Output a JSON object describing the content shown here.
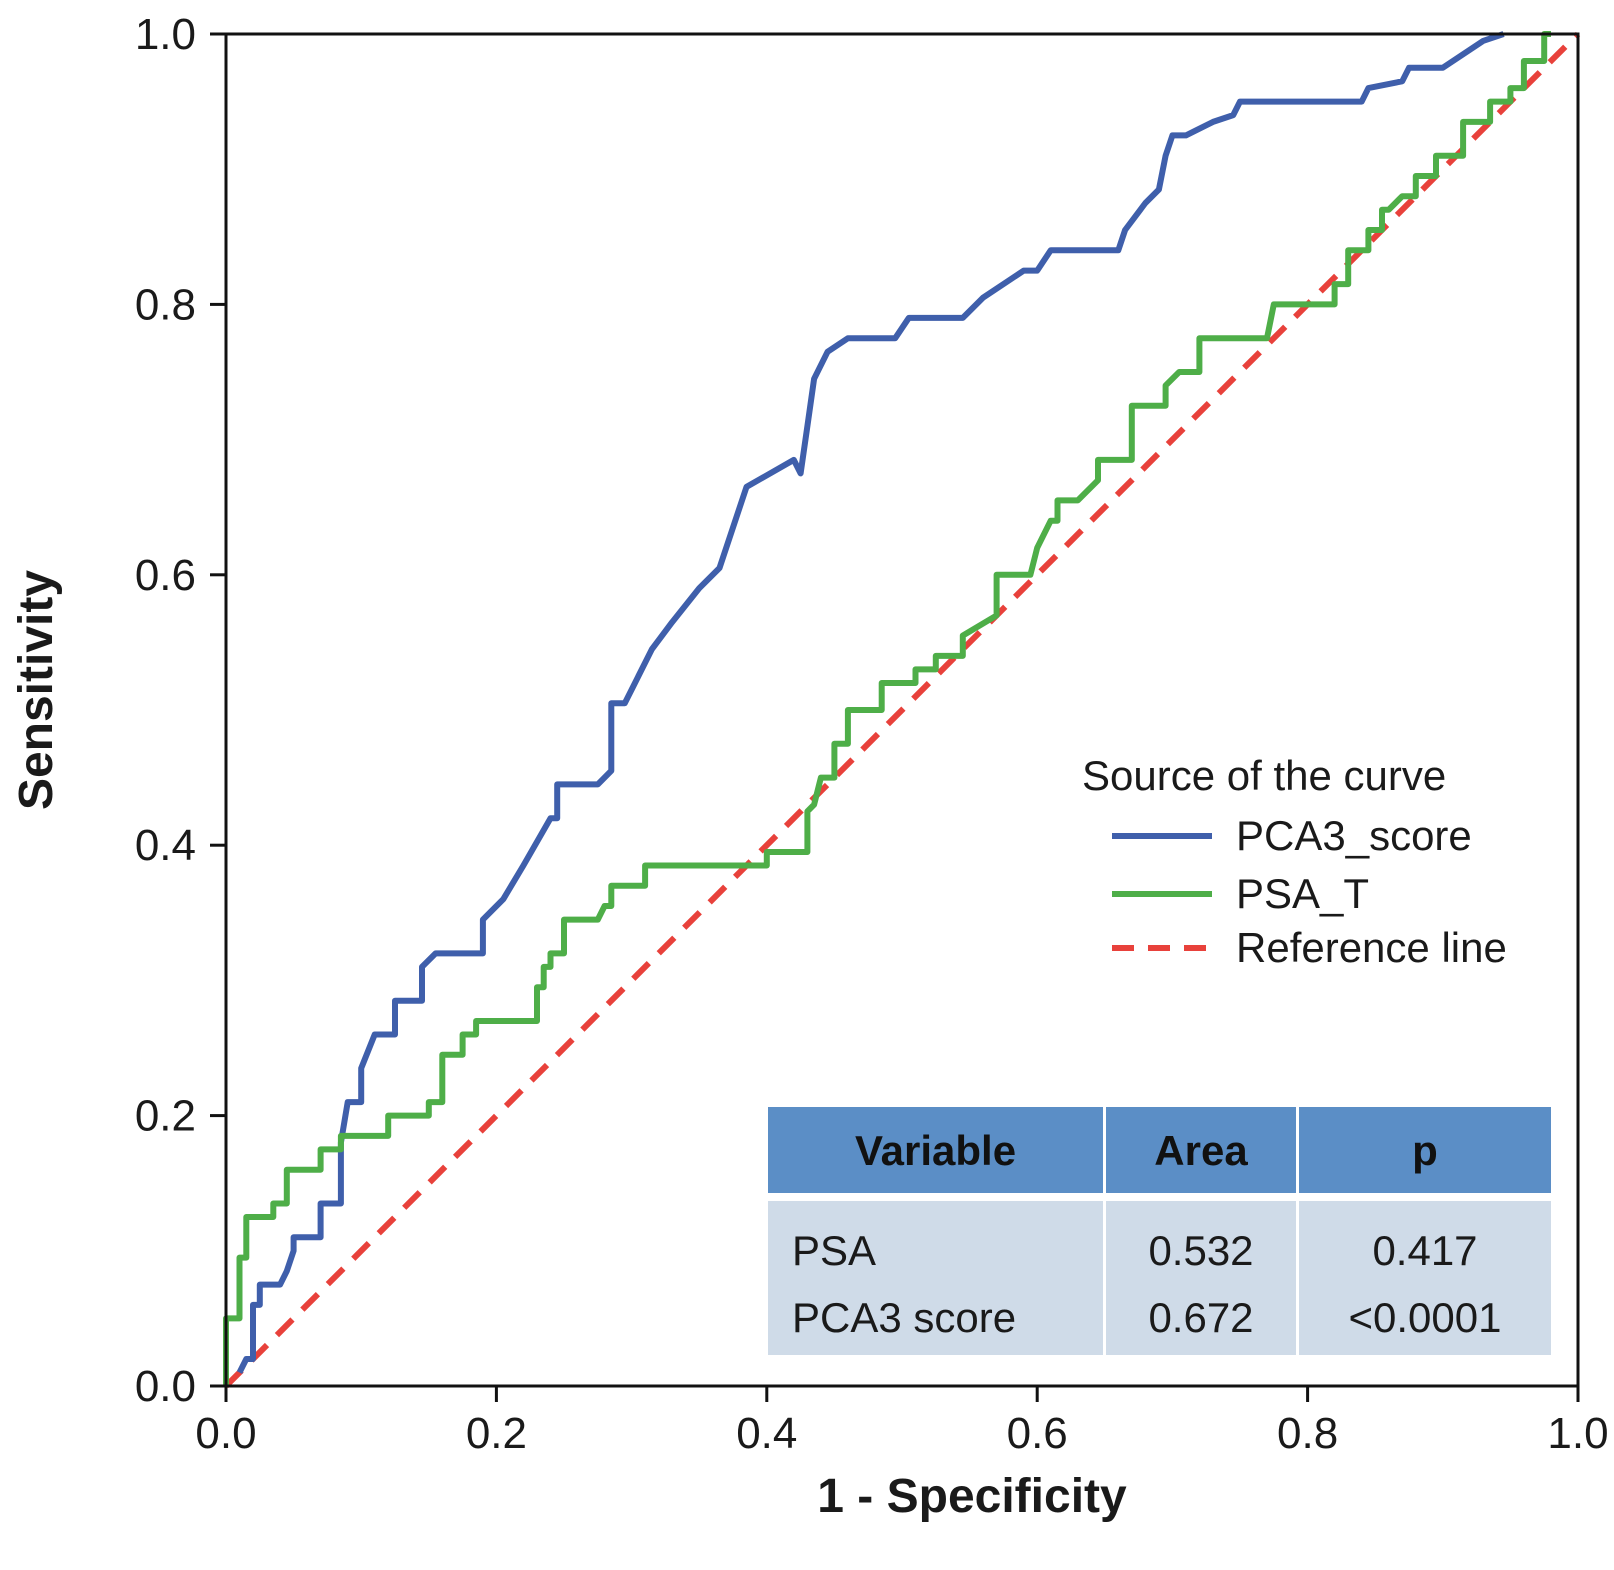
{
  "chart_data": {
    "type": "line",
    "xlabel": "1 - Specificity",
    "ylabel": "Sensitivity",
    "xlim": [
      0,
      1
    ],
    "ylim": [
      0,
      1
    ],
    "x_ticks": [
      "0.0",
      "0.2",
      "0.4",
      "0.6",
      "0.8",
      "1.0"
    ],
    "y_ticks": [
      "0.0",
      "0.2",
      "0.4",
      "0.6",
      "0.8",
      "1.0"
    ],
    "x_tick_values": [
      0,
      0.2,
      0.4,
      0.6,
      0.8,
      1.0
    ],
    "y_tick_values": [
      0,
      0.2,
      0.4,
      0.6,
      0.8,
      1.0
    ],
    "legend": {
      "title": "Source of the curve",
      "placement": "right",
      "entries": [
        "PCA3_score",
        "PSA_T",
        "Reference line"
      ]
    },
    "series": [
      {
        "name": "PCA3_score",
        "color": "#3f5fab",
        "style": "solid",
        "points": [
          [
            0.01,
            0.01
          ],
          [
            0.015,
            0.02
          ],
          [
            0.02,
            0.02
          ],
          [
            0.02,
            0.06
          ],
          [
            0.025,
            0.06
          ],
          [
            0.025,
            0.075
          ],
          [
            0.04,
            0.075
          ],
          [
            0.045,
            0.085
          ],
          [
            0.05,
            0.1
          ],
          [
            0.05,
            0.11
          ],
          [
            0.07,
            0.11
          ],
          [
            0.07,
            0.135
          ],
          [
            0.085,
            0.135
          ],
          [
            0.085,
            0.18
          ],
          [
            0.09,
            0.21
          ],
          [
            0.1,
            0.21
          ],
          [
            0.1,
            0.235
          ],
          [
            0.11,
            0.26
          ],
          [
            0.125,
            0.26
          ],
          [
            0.125,
            0.285
          ],
          [
            0.145,
            0.285
          ],
          [
            0.145,
            0.31
          ],
          [
            0.155,
            0.32
          ],
          [
            0.19,
            0.32
          ],
          [
            0.19,
            0.345
          ],
          [
            0.205,
            0.36
          ],
          [
            0.22,
            0.385
          ],
          [
            0.24,
            0.42
          ],
          [
            0.245,
            0.42
          ],
          [
            0.245,
            0.445
          ],
          [
            0.275,
            0.445
          ],
          [
            0.285,
            0.455
          ],
          [
            0.285,
            0.505
          ],
          [
            0.295,
            0.505
          ],
          [
            0.315,
            0.545
          ],
          [
            0.33,
            0.565
          ],
          [
            0.35,
            0.59
          ],
          [
            0.365,
            0.605
          ],
          [
            0.385,
            0.665
          ],
          [
            0.42,
            0.685
          ],
          [
            0.425,
            0.675
          ],
          [
            0.43,
            0.71
          ],
          [
            0.435,
            0.745
          ],
          [
            0.445,
            0.765
          ],
          [
            0.46,
            0.775
          ],
          [
            0.495,
            0.775
          ],
          [
            0.505,
            0.79
          ],
          [
            0.545,
            0.79
          ],
          [
            0.56,
            0.805
          ],
          [
            0.59,
            0.825
          ],
          [
            0.6,
            0.825
          ],
          [
            0.61,
            0.84
          ],
          [
            0.66,
            0.84
          ],
          [
            0.665,
            0.855
          ],
          [
            0.68,
            0.875
          ],
          [
            0.69,
            0.885
          ],
          [
            0.695,
            0.91
          ],
          [
            0.7,
            0.925
          ],
          [
            0.71,
            0.925
          ],
          [
            0.73,
            0.935
          ],
          [
            0.745,
            0.94
          ],
          [
            0.75,
            0.95
          ],
          [
            0.84,
            0.95
          ],
          [
            0.845,
            0.96
          ],
          [
            0.87,
            0.965
          ],
          [
            0.875,
            0.975
          ],
          [
            0.9,
            0.975
          ],
          [
            0.915,
            0.985
          ],
          [
            0.93,
            0.995
          ],
          [
            0.945,
            1.0
          ]
        ]
      },
      {
        "name": "PSA_T",
        "color": "#4eae48",
        "style": "solid",
        "points": [
          [
            0,
            0
          ],
          [
            0,
            0.05
          ],
          [
            0.01,
            0.05
          ],
          [
            0.01,
            0.095
          ],
          [
            0.015,
            0.095
          ],
          [
            0.015,
            0.125
          ],
          [
            0.035,
            0.125
          ],
          [
            0.035,
            0.135
          ],
          [
            0.045,
            0.135
          ],
          [
            0.045,
            0.16
          ],
          [
            0.07,
            0.16
          ],
          [
            0.07,
            0.175
          ],
          [
            0.085,
            0.175
          ],
          [
            0.085,
            0.185
          ],
          [
            0.12,
            0.185
          ],
          [
            0.12,
            0.2
          ],
          [
            0.15,
            0.2
          ],
          [
            0.15,
            0.21
          ],
          [
            0.16,
            0.21
          ],
          [
            0.16,
            0.245
          ],
          [
            0.175,
            0.245
          ],
          [
            0.175,
            0.26
          ],
          [
            0.185,
            0.26
          ],
          [
            0.185,
            0.27
          ],
          [
            0.23,
            0.27
          ],
          [
            0.23,
            0.295
          ],
          [
            0.235,
            0.295
          ],
          [
            0.235,
            0.31
          ],
          [
            0.24,
            0.31
          ],
          [
            0.24,
            0.32
          ],
          [
            0.25,
            0.32
          ],
          [
            0.25,
            0.345
          ],
          [
            0.275,
            0.345
          ],
          [
            0.28,
            0.355
          ],
          [
            0.285,
            0.355
          ],
          [
            0.285,
            0.37
          ],
          [
            0.31,
            0.37
          ],
          [
            0.31,
            0.385
          ],
          [
            0.4,
            0.385
          ],
          [
            0.4,
            0.395
          ],
          [
            0.43,
            0.395
          ],
          [
            0.43,
            0.425
          ],
          [
            0.435,
            0.43
          ],
          [
            0.44,
            0.45
          ],
          [
            0.45,
            0.45
          ],
          [
            0.45,
            0.475
          ],
          [
            0.46,
            0.475
          ],
          [
            0.46,
            0.5
          ],
          [
            0.485,
            0.5
          ],
          [
            0.485,
            0.52
          ],
          [
            0.51,
            0.52
          ],
          [
            0.51,
            0.53
          ],
          [
            0.525,
            0.53
          ],
          [
            0.525,
            0.54
          ],
          [
            0.545,
            0.54
          ],
          [
            0.545,
            0.555
          ],
          [
            0.57,
            0.57
          ],
          [
            0.57,
            0.6
          ],
          [
            0.595,
            0.6
          ],
          [
            0.6,
            0.62
          ],
          [
            0.61,
            0.64
          ],
          [
            0.615,
            0.64
          ],
          [
            0.615,
            0.655
          ],
          [
            0.63,
            0.655
          ],
          [
            0.645,
            0.67
          ],
          [
            0.645,
            0.685
          ],
          [
            0.67,
            0.685
          ],
          [
            0.67,
            0.725
          ],
          [
            0.695,
            0.725
          ],
          [
            0.695,
            0.74
          ],
          [
            0.705,
            0.75
          ],
          [
            0.72,
            0.75
          ],
          [
            0.72,
            0.775
          ],
          [
            0.77,
            0.775
          ],
          [
            0.775,
            0.8
          ],
          [
            0.82,
            0.8
          ],
          [
            0.82,
            0.815
          ],
          [
            0.83,
            0.815
          ],
          [
            0.83,
            0.84
          ],
          [
            0.845,
            0.84
          ],
          [
            0.845,
            0.855
          ],
          [
            0.855,
            0.855
          ],
          [
            0.855,
            0.87
          ],
          [
            0.86,
            0.87
          ],
          [
            0.87,
            0.88
          ],
          [
            0.88,
            0.88
          ],
          [
            0.88,
            0.895
          ],
          [
            0.895,
            0.895
          ],
          [
            0.895,
            0.91
          ],
          [
            0.915,
            0.91
          ],
          [
            0.915,
            0.935
          ],
          [
            0.935,
            0.935
          ],
          [
            0.935,
            0.95
          ],
          [
            0.95,
            0.95
          ],
          [
            0.95,
            0.96
          ],
          [
            0.96,
            0.96
          ],
          [
            0.96,
            0.98
          ],
          [
            0.975,
            0.98
          ],
          [
            0.975,
            1.0
          ],
          [
            0.98,
            1.0
          ]
        ]
      },
      {
        "name": "Reference line",
        "color": "#e8413b",
        "style": "dashed",
        "points": [
          [
            0,
            0
          ],
          [
            1,
            1
          ]
        ]
      }
    ],
    "table": {
      "header_color": "#5b8ec6",
      "body_color": "#cfdbe8",
      "columns": [
        "Variable",
        "Area",
        "p"
      ],
      "rows": [
        [
          "PSA",
          "0.532",
          "0.417"
        ],
        [
          "PCA3 score",
          "0.672",
          "<0.0001"
        ]
      ]
    }
  }
}
